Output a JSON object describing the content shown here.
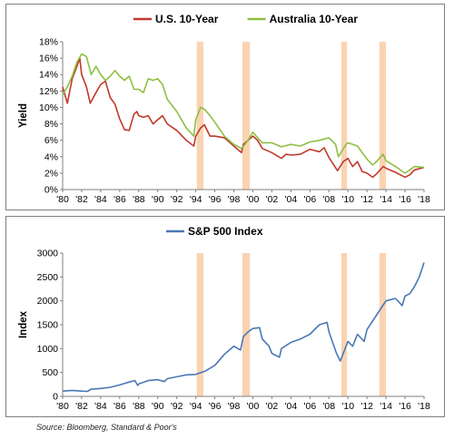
{
  "chart_data": [
    {
      "type": "line",
      "ylabel": "Yield",
      "legend_placement": "top",
      "grid": false,
      "ylim": [
        0,
        18
      ],
      "yticks": [
        "0%",
        "2%",
        "4%",
        "6%",
        "8%",
        "10%",
        "12%",
        "14%",
        "16%",
        "18%"
      ],
      "xlim": [
        1980,
        2018
      ],
      "xticks": [
        "'80",
        "'82",
        "'84",
        "'86",
        "'88",
        "'90",
        "'92",
        "'94",
        "'96",
        "'98",
        "'00",
        "'02",
        "'04",
        "'06",
        "'08",
        "'10",
        "'12",
        "'14",
        "'16",
        "'18"
      ],
      "shaded_periods": [
        [
          1994.1,
          1994.8
        ],
        [
          1998.9,
          1999.7
        ],
        [
          2009.3,
          2009.9
        ],
        [
          2013.3,
          2014.0
        ]
      ],
      "shade_color": "#f9cba5",
      "series": [
        {
          "name": "U.S. 10-Year",
          "color": "#c0392b",
          "x": [
            1980,
            1980.5,
            1981,
            1981.5,
            1981.8,
            1982,
            1982.5,
            1982.9,
            1983.5,
            1984,
            1984.5,
            1985,
            1985.5,
            1986,
            1986.5,
            1987,
            1987.5,
            1987.8,
            1988,
            1988.5,
            1989,
            1989.5,
            1990,
            1990.5,
            1991,
            1992,
            1993,
            1993.8,
            1994,
            1994.5,
            1994.9,
            1995.5,
            1996,
            1997,
            1998,
            1998.8,
            1999,
            1999.5,
            2000,
            2000.5,
            2001,
            2002,
            2003,
            2003.5,
            2004,
            2005,
            2006,
            2007,
            2007.5,
            2008,
            2008.9,
            2009.5,
            2010,
            2010.5,
            2011,
            2011.5,
            2012,
            2012.6,
            2013,
            2013.7,
            2014,
            2015,
            2016,
            2016.5,
            2017,
            2018
          ],
          "values": [
            12.5,
            10.5,
            13.5,
            15,
            16,
            14,
            12.5,
            10.5,
            11.8,
            12.8,
            13.2,
            11.2,
            10.4,
            8.6,
            7.3,
            7.2,
            9.2,
            9.5,
            9,
            8.8,
            9,
            8,
            8.5,
            9,
            8,
            7.2,
            6,
            5.3,
            6.5,
            7.5,
            7.9,
            6.5,
            6.5,
            6.3,
            5.3,
            4.5,
            5.5,
            6,
            6.5,
            6,
            5,
            4.5,
            3.8,
            4.3,
            4.2,
            4.3,
            4.9,
            4.6,
            5.1,
            3.9,
            2.3,
            3.4,
            3.8,
            2.8,
            3.4,
            2.2,
            2,
            1.5,
            1.9,
            2.8,
            2.6,
            2.1,
            1.5,
            1.8,
            2.4,
            2.7
          ]
        },
        {
          "name": "Australia 10-Year",
          "color": "#8dbf42",
          "x": [
            1980,
            1980.5,
            1981,
            1981.5,
            1982,
            1982.5,
            1983,
            1983.5,
            1984,
            1984.5,
            1985,
            1985.5,
            1986,
            1986.5,
            1987,
            1987.5,
            1988,
            1988.5,
            1989,
            1989.5,
            1990,
            1990.5,
            1991,
            1992,
            1993,
            1993.8,
            1994,
            1994.5,
            1994.9,
            1995.5,
            1996,
            1997,
            1998,
            1998.8,
            1999.5,
            2000,
            2000.5,
            2001,
            2002,
            2003,
            2004,
            2005,
            2006,
            2007,
            2008,
            2008.7,
            2009,
            2009.8,
            2010,
            2011,
            2011.5,
            2012,
            2012.6,
            2013,
            2013.7,
            2014,
            2015,
            2016,
            2016.5,
            2017,
            2018
          ],
          "values": [
            11.5,
            12.5,
            13.8,
            15.5,
            16.5,
            16.2,
            14,
            15,
            14,
            13.3,
            13.8,
            14.5,
            13.8,
            13.3,
            13.8,
            12.2,
            12.2,
            11.8,
            13.5,
            13.3,
            13.5,
            12.8,
            11,
            9.5,
            7.5,
            6.5,
            8.5,
            10,
            9.8,
            9,
            8.2,
            6.5,
            5.5,
            5,
            6,
            7,
            6.3,
            5.7,
            5.7,
            5.2,
            5.5,
            5.3,
            5.8,
            6,
            6.3,
            5.5,
            4,
            5.5,
            5.7,
            5.3,
            4.5,
            3.7,
            3.0,
            3.4,
            4.3,
            3.5,
            2.8,
            2,
            2.4,
            2.8,
            2.7
          ]
        }
      ]
    },
    {
      "type": "line",
      "ylabel": "Index",
      "legend_placement": "top",
      "grid": false,
      "ylim": [
        0,
        3000
      ],
      "yticks": [
        "0",
        "500",
        "1000",
        "1500",
        "2000",
        "2500",
        "3000"
      ],
      "xlim": [
        1980,
        2018
      ],
      "xticks": [
        "'80",
        "'82",
        "'84",
        "'86",
        "'88",
        "'90",
        "'92",
        "'94",
        "'96",
        "'98",
        "'00",
        "'02",
        "'04",
        "'06",
        "'08",
        "'10",
        "'12",
        "'14",
        "'16",
        "'18"
      ],
      "shaded_periods": [
        [
          1994.1,
          1994.8
        ],
        [
          1998.9,
          1999.7
        ],
        [
          2009.3,
          2009.9
        ],
        [
          2013.3,
          2014.0
        ]
      ],
      "shade_color": "#f9cba5",
      "series": [
        {
          "name": "S&P 500 Index",
          "color": "#4a78b5",
          "x": [
            1980,
            1981,
            1982,
            1982.6,
            1983,
            1984,
            1985,
            1986,
            1987,
            1987.6,
            1987.9,
            1988,
            1989,
            1990,
            1990.7,
            1991,
            1992,
            1993,
            1994,
            1995,
            1996,
            1997,
            1998,
            1998.7,
            1999,
            1999.5,
            2000,
            2000.7,
            2001,
            2001.7,
            2002,
            2002.8,
            2003,
            2004,
            2005,
            2006,
            2007,
            2007.8,
            2008,
            2008.8,
            2009.2,
            2009.5,
            2010,
            2010.5,
            2011,
            2011.7,
            2012,
            2013,
            2014,
            2015,
            2015.7,
            2016,
            2016.5,
            2017,
            2017.5,
            2018
          ],
          "values": [
            110,
            125,
            110,
            105,
            150,
            165,
            190,
            240,
            300,
            330,
            230,
            260,
            330,
            350,
            310,
            370,
            410,
            450,
            460,
            530,
            650,
            880,
            1050,
            970,
            1250,
            1350,
            1420,
            1440,
            1200,
            1050,
            900,
            820,
            1000,
            1130,
            1200,
            1300,
            1500,
            1550,
            1350,
            900,
            740,
            900,
            1150,
            1050,
            1300,
            1150,
            1400,
            1700,
            2000,
            2050,
            1900,
            2100,
            2150,
            2300,
            2500,
            2800
          ]
        }
      ]
    }
  ],
  "source": "Source: Bloomberg, Standard & Poor's"
}
